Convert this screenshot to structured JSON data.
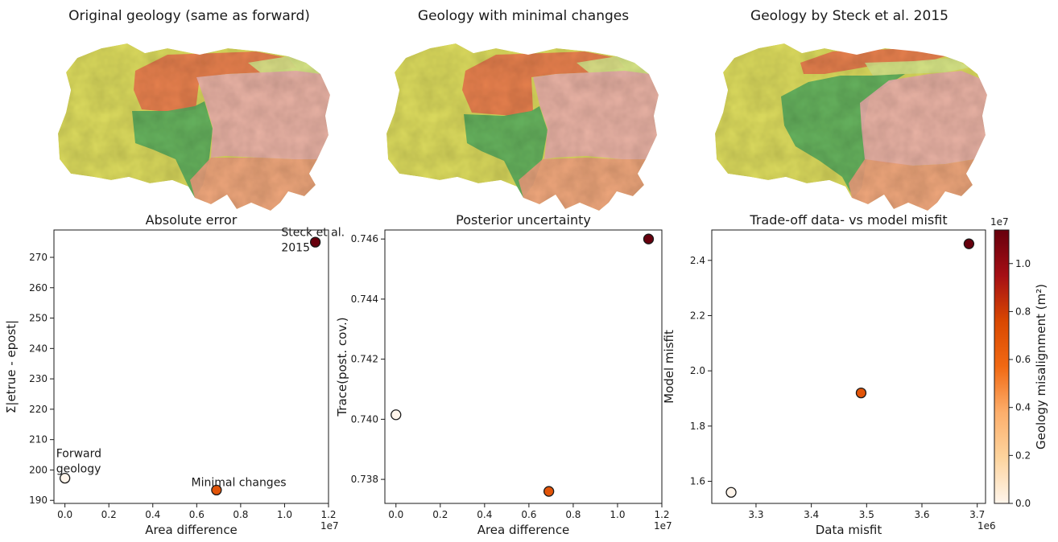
{
  "maps": [
    {
      "title": "Original geology (same as forward)",
      "variant": "original"
    },
    {
      "title": "Geology with minimal changes",
      "variant": "minimal"
    },
    {
      "title": "Geology by Steck et al. 2015",
      "variant": "steck"
    }
  ],
  "map_colors": {
    "yellow": "#dedd5f",
    "orange": "#ea7a4e",
    "light_green": "#d6e58a",
    "green": "#5cb05f",
    "pink": "#ebb0ad",
    "salmon": "#f0a27f"
  },
  "colorbar": {
    "label": "Geology misalignment (m²)",
    "exponent": "1e7",
    "ticks": [
      "0.0",
      "0.2",
      "0.4",
      "0.6",
      "0.8",
      "1.0"
    ],
    "colors": [
      "#fff5eb",
      "#fdd49e",
      "#fdae6b",
      "#f16913",
      "#d94801",
      "#a50f15",
      "#67000d"
    ]
  },
  "chart_data": [
    {
      "type": "scatter",
      "title": "Absolute error",
      "xlabel": "Area difference",
      "ylabel": "Σ|etrue - epost|",
      "x_exponent": "1e7",
      "xlim": [
        -0.05,
        1.2
      ],
      "ylim": [
        189,
        279
      ],
      "xticks": [
        0.0,
        0.2,
        0.4,
        0.6,
        0.8,
        1.0,
        1.2
      ],
      "xtick_labels": [
        "0.0",
        "0.2",
        "0.4",
        "0.6",
        "0.8",
        "1.0",
        "1.2"
      ],
      "yticks": [
        190,
        200,
        210,
        220,
        230,
        240,
        250,
        260,
        270
      ],
      "ytick_labels": [
        "190",
        "200",
        "210",
        "220",
        "230",
        "240",
        "250",
        "260",
        "270"
      ],
      "points": [
        {
          "x": 0.0,
          "y": 197.3,
          "c": 0.0,
          "label": "Forward geology"
        },
        {
          "x": 0.69,
          "y": 193.4,
          "c": 0.69,
          "label": "Minimal changes"
        },
        {
          "x": 1.14,
          "y": 275.0,
          "c": 1.14,
          "label": "Steck et al. 2015"
        }
      ],
      "annotations": [
        {
          "lines": [
            "Forward",
            "geology"
          ],
          "x": -0.04,
          "y": 204.2
        },
        {
          "lines": [
            "Minimal changes"
          ],
          "x": 0.575,
          "y": 194.7
        },
        {
          "lines": [
            "Steck et al.",
            "2015"
          ],
          "x": 0.985,
          "y": 277.0
        }
      ]
    },
    {
      "type": "scatter",
      "title": "Posterior uncertainty",
      "xlabel": "Area difference",
      "ylabel": "Trace(post. cov.)",
      "x_exponent": "1e7",
      "xlim": [
        -0.05,
        1.2
      ],
      "ylim": [
        0.7372,
        0.7463
      ],
      "xticks": [
        0.0,
        0.2,
        0.4,
        0.6,
        0.8,
        1.0,
        1.2
      ],
      "xtick_labels": [
        "0.0",
        "0.2",
        "0.4",
        "0.6",
        "0.8",
        "1.0",
        "1.2"
      ],
      "yticks": [
        0.738,
        0.74,
        0.742,
        0.744,
        0.746
      ],
      "ytick_labels": [
        "0.738",
        "0.740",
        "0.742",
        "0.744",
        "0.746"
      ],
      "points": [
        {
          "x": 0.0,
          "y": 0.74015,
          "c": 0.0
        },
        {
          "x": 0.69,
          "y": 0.7376,
          "c": 0.69
        },
        {
          "x": 1.14,
          "y": 0.746,
          "c": 1.14
        }
      ]
    },
    {
      "type": "scatter",
      "title": "Trade-off data- vs model misfit",
      "xlabel": "Data misfit",
      "ylabel": "Model misfit",
      "x_exponent": "1e6",
      "xlim": [
        3.22,
        3.715
      ],
      "ylim": [
        1.52,
        2.51
      ],
      "xticks": [
        3.3,
        3.4,
        3.5,
        3.6,
        3.7
      ],
      "xtick_labels": [
        "3.3",
        "3.4",
        "3.5",
        "3.6",
        "3.7"
      ],
      "yticks": [
        1.6,
        1.8,
        2.0,
        2.2,
        2.4
      ],
      "ytick_labels": [
        "1.6",
        "1.8",
        "2.0",
        "2.2",
        "2.4"
      ],
      "points": [
        {
          "x": 3.255,
          "y": 1.56,
          "c": 0.0
        },
        {
          "x": 3.49,
          "y": 1.92,
          "c": 0.69
        },
        {
          "x": 3.685,
          "y": 2.46,
          "c": 1.14
        }
      ]
    }
  ]
}
